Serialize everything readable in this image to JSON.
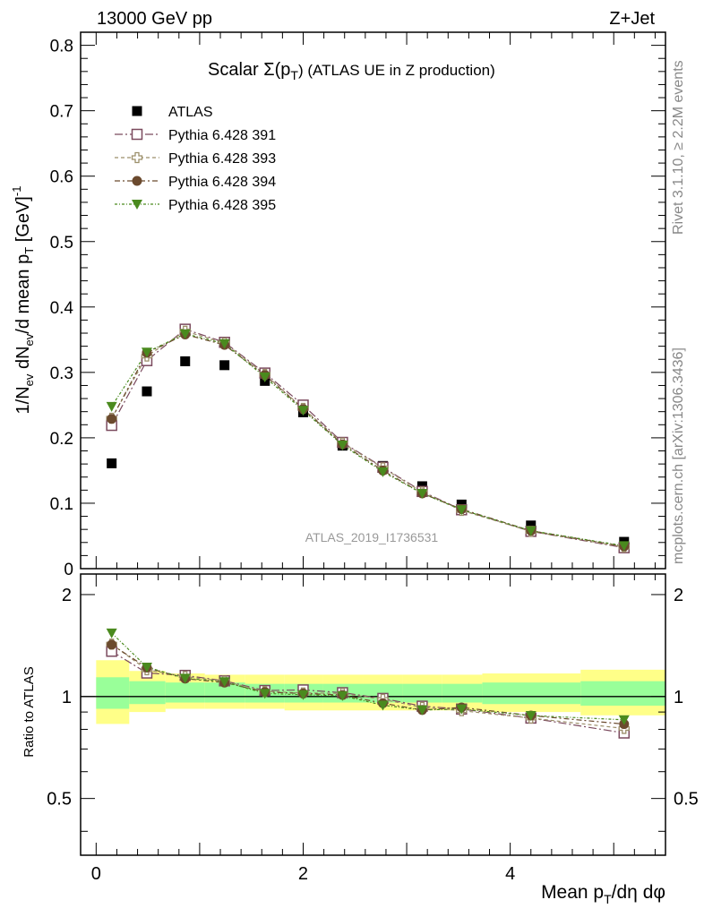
{
  "header": {
    "left": "13000 GeV pp",
    "right": "Z+Jet"
  },
  "plot_title_main": "Scalar Σ(p",
  "plot_title_sub": "T",
  "plot_title_tail": ") (ATLAS UE in Z production)",
  "side_text_top": "Rivet 3.1.10, ≥ 2.2M events",
  "side_text_bottom": "mcplots.cern.ch [arXiv:1306.3436]",
  "analysis_id": "ATLAS_2019_I1736531",
  "ylabel_main": "1/N_ev dN_ev/d mean p_T [GeV]^-1",
  "ylabel_ratio": "Ratio to ATLAS",
  "xlabel": "Mean p_T/dη dφ",
  "colors": {
    "atlas": "#000000",
    "s391": "#7b4a5e",
    "s393": "#9c8f6a",
    "s394": "#6b4a2e",
    "s395": "#4a8a1e",
    "band_inner": "#99ff99",
    "band_outer": "#ffff88"
  },
  "chart_data": {
    "type": "scatter",
    "x": [
      0.15,
      0.49,
      0.86,
      1.24,
      1.63,
      2.0,
      2.38,
      2.77,
      3.15,
      3.53,
      4.2,
      5.1
    ],
    "xlim": [
      -0.15,
      5.5
    ],
    "ylim_main": [
      0,
      0.82
    ],
    "ylim_ratio": [
      0.34,
      2.3
    ],
    "xticks": [
      0,
      2,
      4
    ],
    "yticks_main": [
      0,
      0.1,
      0.2,
      0.3,
      0.4,
      0.5,
      0.6,
      0.7,
      0.8
    ],
    "yticks_ratio": [
      0.5,
      1,
      2
    ],
    "series": [
      {
        "name": "ATLAS",
        "marker": "filled-square",
        "values": [
          0.161,
          0.271,
          0.317,
          0.311,
          0.287,
          0.239,
          0.188,
          0.157,
          0.126,
          0.098,
          0.066,
          0.041
        ]
      },
      {
        "name": "Pythia 6.428 391",
        "marker": "open-square",
        "values": [
          0.219,
          0.318,
          0.366,
          0.346,
          0.299,
          0.25,
          0.193,
          0.155,
          0.118,
          0.09,
          0.057,
          0.032
        ]
      },
      {
        "name": "Pythia 6.428 393",
        "marker": "open-cross",
        "values": [
          0.23,
          0.325,
          0.363,
          0.345,
          0.297,
          0.245,
          0.192,
          0.154,
          0.117,
          0.089,
          0.057,
          0.033
        ]
      },
      {
        "name": "Pythia 6.428 394",
        "marker": "filled-circle",
        "values": [
          0.229,
          0.33,
          0.358,
          0.342,
          0.296,
          0.244,
          0.19,
          0.15,
          0.115,
          0.091,
          0.058,
          0.034
        ]
      },
      {
        "name": "Pythia 6.428 395",
        "marker": "filled-triangle-down",
        "values": [
          0.248,
          0.331,
          0.359,
          0.344,
          0.293,
          0.242,
          0.189,
          0.148,
          0.115,
          0.09,
          0.058,
          0.035
        ]
      }
    ],
    "ratio_bands": {
      "edges": [
        0.0,
        0.32,
        0.67,
        1.05,
        1.44,
        1.82,
        2.19,
        2.58,
        2.96,
        3.34,
        3.73,
        4.68,
        5.5
      ],
      "inner": [
        [
          0.92,
          1.14
        ],
        [
          0.95,
          1.11
        ],
        [
          0.96,
          1.1
        ],
        [
          0.96,
          1.1
        ],
        [
          0.96,
          1.09
        ],
        [
          0.96,
          1.09
        ],
        [
          0.96,
          1.09
        ],
        [
          0.96,
          1.09
        ],
        [
          0.96,
          1.09
        ],
        [
          0.96,
          1.09
        ],
        [
          0.95,
          1.1
        ],
        [
          0.94,
          1.11
        ]
      ],
      "outer": [
        [
          0.83,
          1.28
        ],
        [
          0.9,
          1.19
        ],
        [
          0.92,
          1.17
        ],
        [
          0.92,
          1.16
        ],
        [
          0.92,
          1.16
        ],
        [
          0.91,
          1.16
        ],
        [
          0.91,
          1.16
        ],
        [
          0.91,
          1.16
        ],
        [
          0.91,
          1.16
        ],
        [
          0.91,
          1.16
        ],
        [
          0.9,
          1.17
        ],
        [
          0.88,
          1.2
        ]
      ]
    }
  }
}
